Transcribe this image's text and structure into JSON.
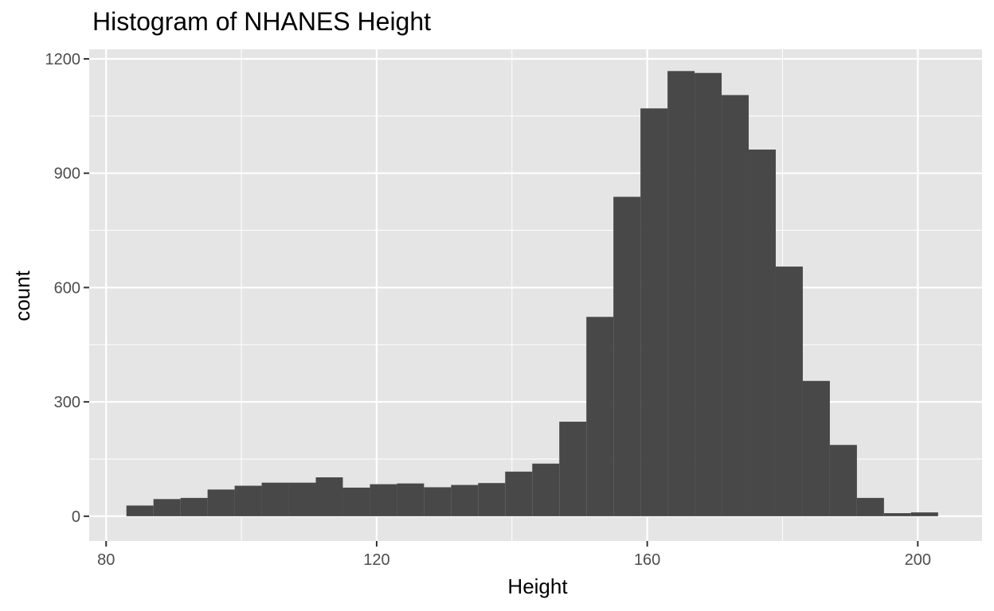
{
  "chart_data": {
    "type": "histogram",
    "title": "Histogram of NHANES Height",
    "xlabel": "Height",
    "ylabel": "count",
    "xlim": [
      77.5,
      209.5
    ],
    "ylim": [
      -65,
      1225
    ],
    "x_ticks": [
      80,
      120,
      160,
      200
    ],
    "x_minor_ticks": [
      100,
      140,
      180
    ],
    "y_ticks": [
      0,
      300,
      600,
      900,
      1200
    ],
    "y_minor_ticks": [
      150,
      450,
      750,
      1050
    ],
    "bin_width": 4,
    "bins": [
      {
        "x0": 83,
        "x1": 87,
        "count": 28
      },
      {
        "x0": 87,
        "x1": 91,
        "count": 45
      },
      {
        "x0": 91,
        "x1": 95,
        "count": 48
      },
      {
        "x0": 95,
        "x1": 99,
        "count": 70
      },
      {
        "x0": 99,
        "x1": 103,
        "count": 80
      },
      {
        "x0": 103,
        "x1": 107,
        "count": 88
      },
      {
        "x0": 107,
        "x1": 111,
        "count": 88
      },
      {
        "x0": 111,
        "x1": 115,
        "count": 102
      },
      {
        "x0": 115,
        "x1": 119,
        "count": 75
      },
      {
        "x0": 119,
        "x1": 123,
        "count": 84
      },
      {
        "x0": 123,
        "x1": 127,
        "count": 86
      },
      {
        "x0": 127,
        "x1": 131,
        "count": 76
      },
      {
        "x0": 131,
        "x1": 135,
        "count": 82
      },
      {
        "x0": 135,
        "x1": 139,
        "count": 87
      },
      {
        "x0": 139,
        "x1": 143,
        "count": 117
      },
      {
        "x0": 143,
        "x1": 147,
        "count": 138
      },
      {
        "x0": 147,
        "x1": 151,
        "count": 248
      },
      {
        "x0": 151,
        "x1": 155,
        "count": 523
      },
      {
        "x0": 155,
        "x1": 159,
        "count": 838
      },
      {
        "x0": 159,
        "x1": 163,
        "count": 1070
      },
      {
        "x0": 163,
        "x1": 167,
        "count": 1168
      },
      {
        "x0": 167,
        "x1": 171,
        "count": 1163
      },
      {
        "x0": 171,
        "x1": 175,
        "count": 1105
      },
      {
        "x0": 175,
        "x1": 179,
        "count": 962
      },
      {
        "x0": 179,
        "x1": 183,
        "count": 655
      },
      {
        "x0": 183,
        "x1": 187,
        "count": 355
      },
      {
        "x0": 187,
        "x1": 191,
        "count": 187
      },
      {
        "x0": 191,
        "x1": 195,
        "count": 48
      },
      {
        "x0": 195,
        "x1": 199,
        "count": 8
      },
      {
        "x0": 199,
        "x1": 203,
        "count": 10
      }
    ],
    "grid": true,
    "legend": "none",
    "colors": {
      "panel_background": "#e5e5e5",
      "grid_line": "#ffffff",
      "bar_fill": "#484848",
      "tick_text": "#4d4d4d",
      "axis_tick": "#333333"
    }
  }
}
